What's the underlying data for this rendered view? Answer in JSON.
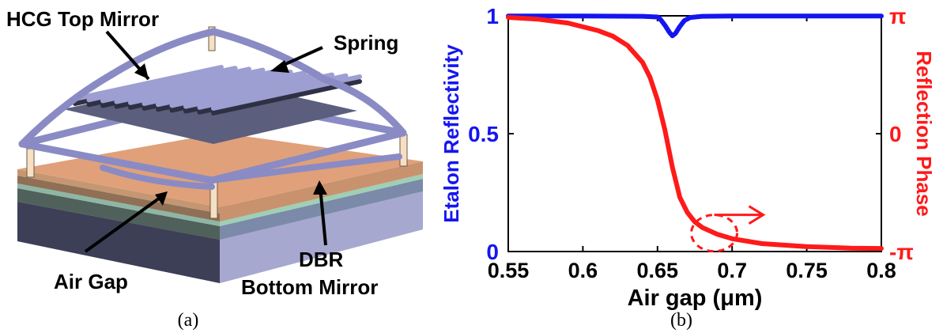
{
  "panel_a": {
    "labels": {
      "hcg": "HCG Top Mirror",
      "spring": "Spring",
      "airgap": "Air Gap",
      "dbr_line1": "DBR",
      "dbr_line2": "Bottom Mirror"
    },
    "caption": "(a)"
  },
  "panel_b": {
    "caption": "(b)",
    "colors": {
      "reflectivity": "#1515f0",
      "phase": "#ff1a1a",
      "axis": "#000000"
    }
  },
  "chart_data": {
    "type": "line",
    "xlabel": "Air gap (μm)",
    "ylabel": "Etalon Reflectivity",
    "y2label": "Reflection Phase",
    "xlim": [
      0.55,
      0.8
    ],
    "ylim": [
      0,
      1
    ],
    "y2lim": [
      -3.14159,
      3.14159
    ],
    "xticks": [
      "0.55",
      "0.6",
      "0.65",
      "0.7",
      "0.75",
      "0.8"
    ],
    "xtick_values": [
      0.55,
      0.6,
      0.65,
      0.7,
      0.75,
      0.8
    ],
    "yticks": [
      "0",
      "0.5",
      "1"
    ],
    "ytick_values": [
      0,
      0.5,
      1
    ],
    "y2ticks": [
      "-π",
      "0",
      "π"
    ],
    "y2tick_values": [
      -3.14159,
      0,
      3.14159
    ],
    "grid": false,
    "series": [
      {
        "axis": "left",
        "x": [
          0.55,
          0.6,
          0.64,
          0.65,
          0.652,
          0.655,
          0.658,
          0.66,
          0.662,
          0.665,
          0.668,
          0.672,
          0.68,
          0.7,
          0.75,
          0.8
        ],
        "y": [
          0.999,
          0.999,
          0.998,
          0.995,
          0.985,
          0.96,
          0.93,
          0.915,
          0.925,
          0.955,
          0.98,
          0.993,
          0.998,
          0.999,
          0.999,
          0.999
        ]
      },
      {
        "axis": "right",
        "x": [
          0.55,
          0.57,
          0.59,
          0.61,
          0.62,
          0.63,
          0.64,
          0.645,
          0.65,
          0.655,
          0.66,
          0.665,
          0.67,
          0.675,
          0.68,
          0.69,
          0.7,
          0.72,
          0.75,
          0.78,
          0.8
        ],
        "y": [
          3.1,
          3.05,
          2.95,
          2.75,
          2.6,
          2.35,
          1.9,
          1.5,
          0.9,
          0.1,
          -0.9,
          -1.7,
          -2.1,
          -2.35,
          -2.5,
          -2.68,
          -2.8,
          -2.93,
          -3.01,
          -3.05,
          -3.06
        ]
      }
    ],
    "annotations": [
      {
        "type": "dashed-ellipse-arrow",
        "x": 0.688,
        "y2": -2.65,
        "points_to": "right-axis"
      }
    ]
  }
}
